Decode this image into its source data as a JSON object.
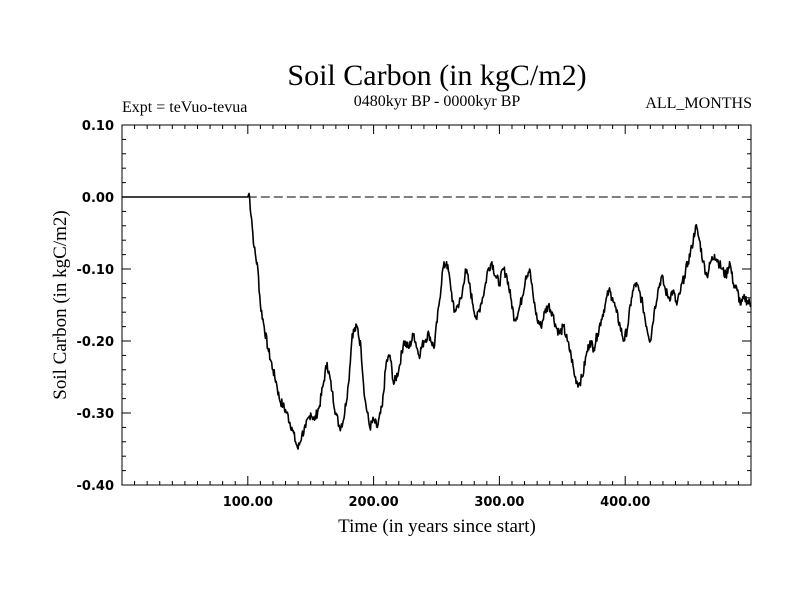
{
  "chart_data": {
    "type": "line",
    "title": "Soil Carbon (in kgC/m2)",
    "left_header": "Expt = teVuo-tevua",
    "center_header": "0480kyr BP - 0000kyr BP",
    "right_header": "ALL_MONTHS",
    "xlabel": "Time (in years since start)",
    "ylabel": "Soil Carbon (in kgC/m2)",
    "xlim": [
      0,
      500
    ],
    "ylim": [
      -0.4,
      0.1
    ],
    "x_ticks": [
      100,
      200,
      300,
      400
    ],
    "x_tick_labels": [
      "100.00",
      "200.00",
      "300.00",
      "400.00"
    ],
    "y_ticks": [
      0.1,
      0.0,
      -0.1,
      -0.2,
      -0.3,
      -0.4
    ],
    "y_tick_labels": [
      "0.10",
      "0.00",
      "-0.10",
      "-0.20",
      "-0.30",
      "-0.40"
    ],
    "reference_line": {
      "y": 0.0,
      "style": "dashed"
    },
    "grid": false,
    "series": [
      {
        "color": "#000000",
        "x": [
          0,
          100,
          101,
          103,
          105,
          108,
          110,
          113,
          116,
          120,
          123,
          125,
          128,
          131,
          135,
          138,
          140,
          143,
          146,
          150,
          153,
          157,
          160,
          163,
          167,
          170,
          173,
          176,
          180,
          183,
          187,
          190,
          193,
          197,
          200,
          203,
          207,
          210,
          213,
          216,
          220,
          224,
          228,
          232,
          236,
          240,
          244,
          248,
          252,
          255,
          258,
          261,
          264,
          267,
          270,
          273,
          276,
          279,
          282,
          285,
          288,
          291,
          294,
          297,
          300,
          303,
          306,
          309,
          312,
          315,
          318,
          321,
          324,
          327,
          330,
          333,
          336,
          339,
          342,
          345,
          348,
          351,
          354,
          357,
          360,
          363,
          366,
          369,
          372,
          375,
          378,
          381,
          384,
          387,
          390,
          393,
          396,
          399,
          402,
          405,
          408,
          411,
          414,
          417,
          420,
          423,
          426,
          429,
          432,
          435,
          438,
          441,
          444,
          447,
          450,
          453,
          456,
          459,
          462,
          465,
          468,
          471,
          474,
          477,
          480,
          483,
          486,
          489,
          492,
          495,
          500
        ],
        "values": [
          0.0,
          0.0,
          0.005,
          -0.03,
          -0.07,
          -0.1,
          -0.15,
          -0.18,
          -0.21,
          -0.24,
          -0.26,
          -0.28,
          -0.29,
          -0.3,
          -0.32,
          -0.34,
          -0.35,
          -0.33,
          -0.32,
          -0.3,
          -0.31,
          -0.29,
          -0.26,
          -0.23,
          -0.27,
          -0.3,
          -0.32,
          -0.31,
          -0.26,
          -0.19,
          -0.18,
          -0.21,
          -0.28,
          -0.32,
          -0.31,
          -0.32,
          -0.29,
          -0.23,
          -0.22,
          -0.26,
          -0.24,
          -0.2,
          -0.21,
          -0.19,
          -0.22,
          -0.2,
          -0.19,
          -0.21,
          -0.15,
          -0.1,
          -0.09,
          -0.12,
          -0.16,
          -0.15,
          -0.14,
          -0.1,
          -0.12,
          -0.15,
          -0.17,
          -0.15,
          -0.13,
          -0.1,
          -0.09,
          -0.11,
          -0.12,
          -0.1,
          -0.11,
          -0.14,
          -0.17,
          -0.16,
          -0.14,
          -0.11,
          -0.1,
          -0.14,
          -0.17,
          -0.18,
          -0.16,
          -0.15,
          -0.16,
          -0.18,
          -0.19,
          -0.18,
          -0.2,
          -0.22,
          -0.25,
          -0.26,
          -0.25,
          -0.22,
          -0.2,
          -0.21,
          -0.19,
          -0.17,
          -0.15,
          -0.13,
          -0.14,
          -0.16,
          -0.18,
          -0.2,
          -0.18,
          -0.14,
          -0.12,
          -0.13,
          -0.15,
          -0.18,
          -0.2,
          -0.16,
          -0.13,
          -0.11,
          -0.13,
          -0.14,
          -0.13,
          -0.15,
          -0.13,
          -0.11,
          -0.09,
          -0.07,
          -0.04,
          -0.06,
          -0.09,
          -0.11,
          -0.09,
          -0.08,
          -0.09,
          -0.1,
          -0.11,
          -0.09,
          -0.12,
          -0.13,
          -0.15,
          -0.14,
          -0.15
        ]
      }
    ]
  }
}
